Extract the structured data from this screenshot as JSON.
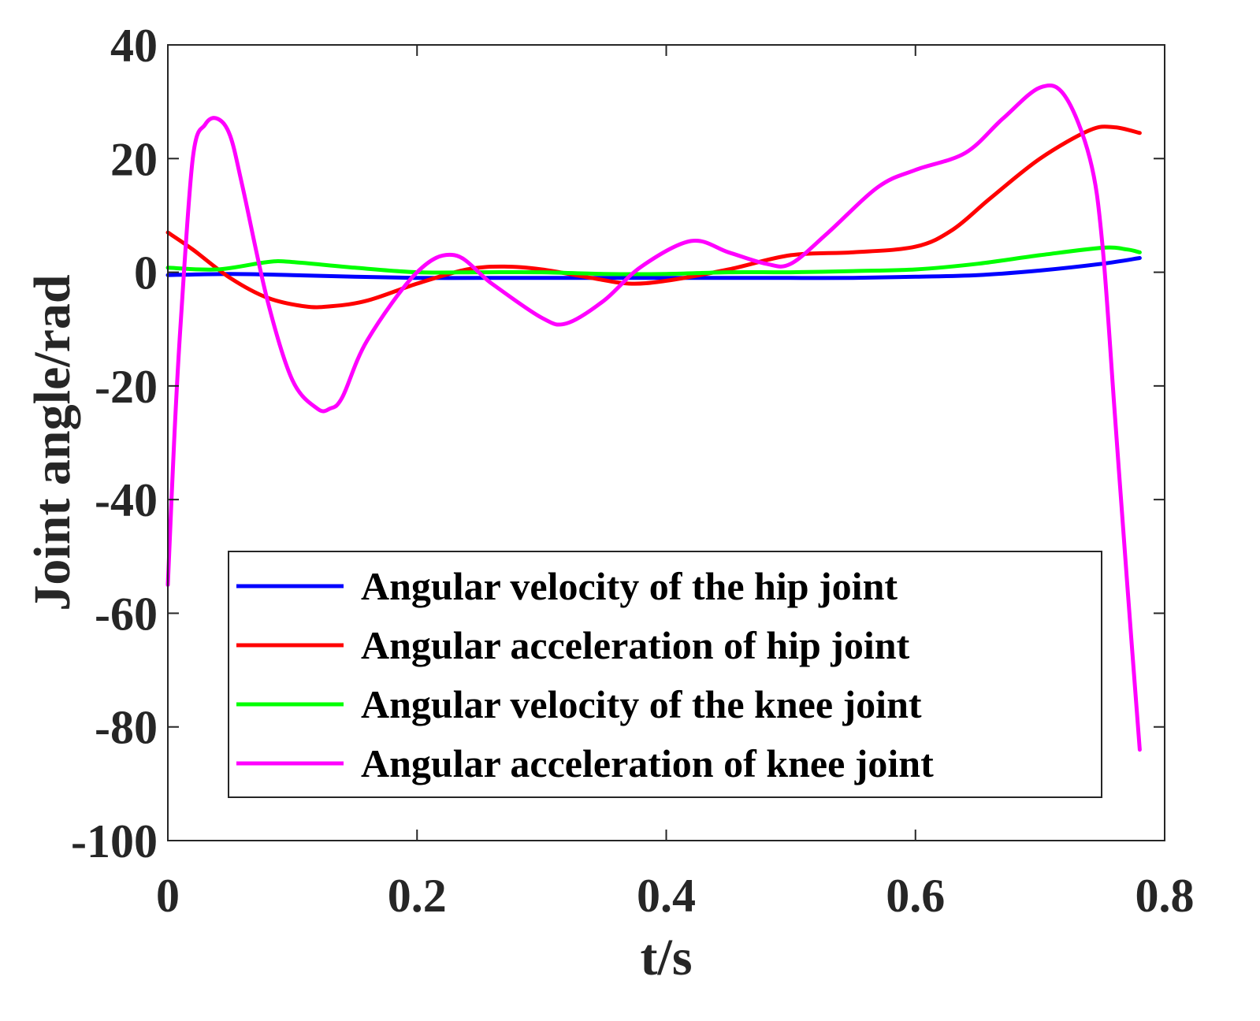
{
  "chart_data": {
    "type": "line",
    "title": "",
    "xlabel": "t/s",
    "ylabel": "Joint angle/rad",
    "xlim": [
      0,
      0.8
    ],
    "ylim": [
      -100,
      40
    ],
    "xticks": [
      0,
      0.2,
      0.4,
      0.6,
      0.8
    ],
    "xtick_labels": [
      "0",
      "0.2",
      "0.4",
      "0.6",
      "0.8"
    ],
    "yticks": [
      40,
      20,
      0,
      -20,
      -40,
      -60,
      -80,
      -100
    ],
    "ytick_labels": [
      "40",
      "20",
      "0",
      "-20",
      "-40",
      "-60",
      "-80",
      "-100"
    ],
    "grid": false,
    "legend_position": "bottom-right",
    "series": [
      {
        "name": "Angular velocity of the hip joint",
        "color": "#0000ff",
        "x": [
          0,
          0.05,
          0.1,
          0.15,
          0.2,
          0.25,
          0.3,
          0.35,
          0.4,
          0.45,
          0.5,
          0.55,
          0.6,
          0.65,
          0.7,
          0.75,
          0.78
        ],
        "y": [
          -0.5,
          -0.3,
          -0.5,
          -0.8,
          -1.0,
          -1.0,
          -1.0,
          -1.0,
          -1.0,
          -1.0,
          -1.0,
          -1.0,
          -0.8,
          -0.5,
          0.3,
          1.5,
          2.5
        ]
      },
      {
        "name": "Angular acceleration of hip joint",
        "color": "#ff0000",
        "x": [
          0,
          0.02,
          0.05,
          0.08,
          0.11,
          0.13,
          0.16,
          0.2,
          0.24,
          0.27,
          0.3,
          0.34,
          0.37,
          0.4,
          0.45,
          0.5,
          0.55,
          0.6,
          0.63,
          0.66,
          0.7,
          0.74,
          0.76,
          0.78
        ],
        "y": [
          7,
          4,
          -1,
          -4.5,
          -6,
          -6,
          -5,
          -2,
          0.5,
          1,
          0.5,
          -1,
          -2,
          -1.5,
          0.5,
          3,
          3.5,
          4.5,
          7.5,
          13,
          20,
          25,
          25.5,
          24.5
        ]
      },
      {
        "name": "Angular velocity of the knee joint",
        "color": "#00ff00",
        "x": [
          0,
          0.04,
          0.08,
          0.1,
          0.15,
          0.2,
          0.25,
          0.3,
          0.35,
          0.4,
          0.45,
          0.5,
          0.55,
          0.6,
          0.65,
          0.7,
          0.75,
          0.77,
          0.78
        ],
        "y": [
          0.8,
          0.5,
          1.8,
          1.8,
          0.8,
          0,
          0,
          0,
          -0.3,
          -0.3,
          0,
          0,
          0.2,
          0.5,
          1.5,
          3,
          4.3,
          4,
          3.5
        ]
      },
      {
        "name": "Angular acceleration of knee joint",
        "color": "#ff00ff",
        "x": [
          0,
          0.005,
          0.01,
          0.02,
          0.03,
          0.04,
          0.05,
          0.06,
          0.08,
          0.1,
          0.12,
          0.13,
          0.14,
          0.16,
          0.2,
          0.23,
          0.26,
          0.3,
          0.32,
          0.35,
          0.38,
          0.42,
          0.45,
          0.48,
          0.5,
          0.53,
          0.57,
          0.6,
          0.64,
          0.67,
          0.7,
          0.72,
          0.74,
          0.75,
          0.76,
          0.77,
          0.78
        ],
        "y": [
          -55,
          -30,
          -10,
          20,
          26,
          27,
          24,
          15,
          -5,
          -19,
          -24,
          -24,
          -22,
          -12,
          0,
          3,
          -2,
          -8,
          -9,
          -5,
          1,
          5.5,
          3.5,
          1.5,
          1.5,
          7,
          15,
          18,
          21,
          27,
          32.5,
          31,
          20,
          5,
          -25,
          -55,
          -84
        ]
      }
    ]
  }
}
